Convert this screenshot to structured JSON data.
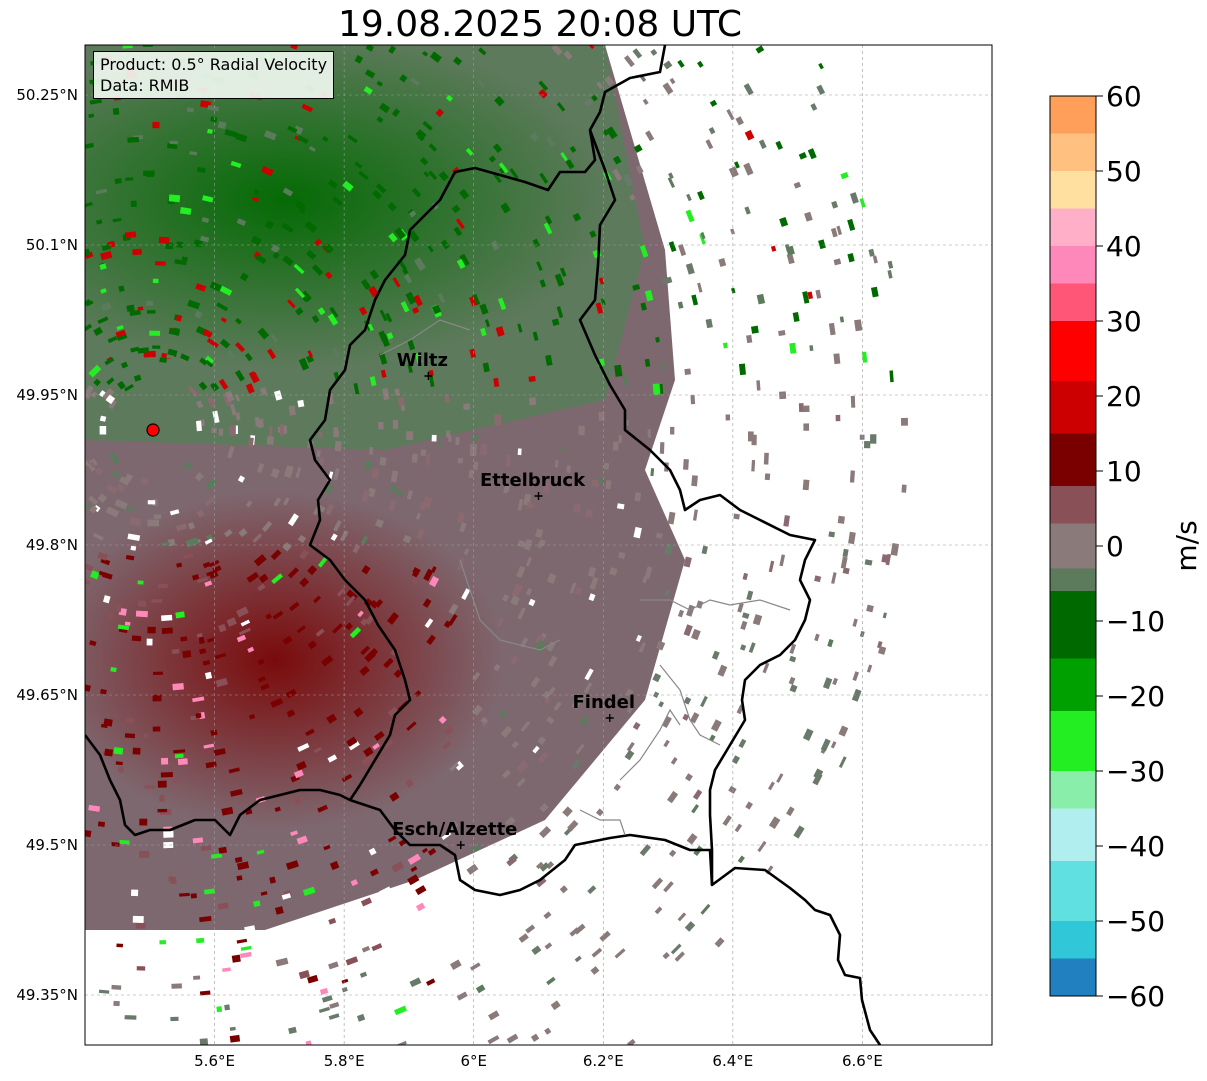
{
  "title": "19.08.2025 20:08 UTC",
  "infobox": {
    "product": "Product: 0.5° Radial Velocity",
    "source": "Data: RMIB"
  },
  "map": {
    "extent": {
      "lon_min": 5.4,
      "lon_max": 6.8,
      "lat_min": 49.3,
      "lat_max": 50.3
    },
    "lat_ticks": [
      {
        "value": 50.25,
        "label": "50.25°N"
      },
      {
        "value": 50.1,
        "label": "50.1°N"
      },
      {
        "value": 49.95,
        "label": "49.95°N"
      },
      {
        "value": 49.8,
        "label": "49.8°N"
      },
      {
        "value": 49.65,
        "label": "49.65°N"
      },
      {
        "value": 49.5,
        "label": "49.5°N"
      },
      {
        "value": 49.35,
        "label": "49.35°N"
      }
    ],
    "lon_ticks": [
      {
        "value": 5.6,
        "label": "5.6°E"
      },
      {
        "value": 5.8,
        "label": "5.8°E"
      },
      {
        "value": 6.0,
        "label": "6°E"
      },
      {
        "value": 6.2,
        "label": "6.2°E"
      },
      {
        "value": 6.4,
        "label": "6.4°E"
      },
      {
        "value": 6.6,
        "label": "6.6°E"
      }
    ],
    "radar_site": {
      "lon": 5.505,
      "lat": 49.915
    },
    "cities": [
      {
        "name": "Wiltz",
        "lon": 5.93,
        "lat": 49.969
      },
      {
        "name": "Ettelbruck",
        "lon": 6.1,
        "lat": 49.849
      },
      {
        "name": "Findel",
        "lon": 6.21,
        "lat": 49.627
      },
      {
        "name": "Esch/Alzette",
        "lon": 5.98,
        "lat": 49.5
      }
    ]
  },
  "colorbar": {
    "label": "m/s",
    "min": -60,
    "max": 60,
    "ticks": [
      {
        "value": 60,
        "label": "60"
      },
      {
        "value": 50,
        "label": "50"
      },
      {
        "value": 40,
        "label": "40"
      },
      {
        "value": 30,
        "label": "30"
      },
      {
        "value": 20,
        "label": "20"
      },
      {
        "value": 10,
        "label": "10"
      },
      {
        "value": 0,
        "label": "0"
      },
      {
        "value": -10,
        "label": "−10"
      },
      {
        "value": -20,
        "label": "−20"
      },
      {
        "value": -30,
        "label": "−30"
      },
      {
        "value": -40,
        "label": "−40"
      },
      {
        "value": -50,
        "label": "−50"
      },
      {
        "value": -60,
        "label": "−60"
      }
    ],
    "bands": [
      {
        "from": 55,
        "to": 60,
        "color": "#ff9f5a"
      },
      {
        "from": 50,
        "to": 55,
        "color": "#ffc080"
      },
      {
        "from": 45,
        "to": 50,
        "color": "#ffe0a0"
      },
      {
        "from": 40,
        "to": 45,
        "color": "#ffb0c8"
      },
      {
        "from": 35,
        "to": 40,
        "color": "#ff88bb"
      },
      {
        "from": 30,
        "to": 35,
        "color": "#ff5577"
      },
      {
        "from": 22,
        "to": 30,
        "color": "#ff0000"
      },
      {
        "from": 15,
        "to": 22,
        "color": "#cc0000"
      },
      {
        "from": 8,
        "to": 15,
        "color": "#7a0000"
      },
      {
        "from": 3,
        "to": 8,
        "color": "#8a5058"
      },
      {
        "from": -3,
        "to": 3,
        "color": "#8a7a7a"
      },
      {
        "from": -6,
        "to": -3,
        "color": "#5c7a5c"
      },
      {
        "from": -15,
        "to": -6,
        "color": "#006a00"
      },
      {
        "from": -22,
        "to": -15,
        "color": "#00a000"
      },
      {
        "from": -30,
        "to": -22,
        "color": "#22ee22"
      },
      {
        "from": -35,
        "to": -30,
        "color": "#88eeaa"
      },
      {
        "from": -42,
        "to": -35,
        "color": "#b0eef0"
      },
      {
        "from": -50,
        "to": -42,
        "color": "#60e0e0"
      },
      {
        "from": -55,
        "to": -50,
        "color": "#30c8d8"
      },
      {
        "from": -60,
        "to": -55,
        "color": "#2080c0"
      }
    ]
  }
}
